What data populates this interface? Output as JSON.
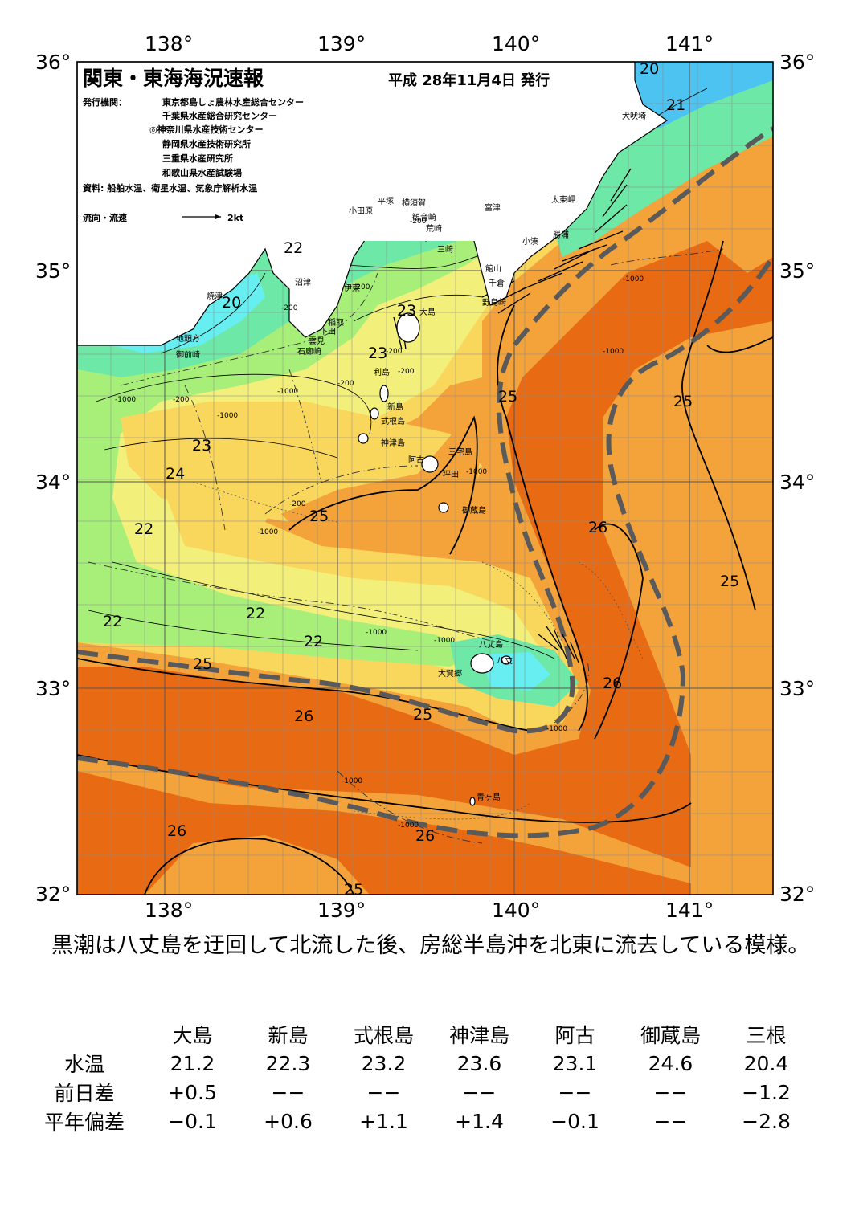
{
  "header": {
    "title": "関東・東海海況速報",
    "issued": "平成 28年11月4日 発行",
    "issuer_label": "発行機関：",
    "issuers": [
      "東京都島しょ農林水産総合センター",
      "千葉県水産総合研究センター",
      "◎神奈川県水産技術センター",
      "静岡県水産技術研究所",
      "三重県水産研究所",
      "和歌山県水産試験場"
    ],
    "source": "資料: 船舶水温、衛星水温、気象庁解析水温",
    "legend_label": "流向・流速",
    "legend_speed": "2kt"
  },
  "axes": {
    "lon_labels": [
      "138°",
      "139°",
      "140°",
      "141°"
    ],
    "lat_labels": [
      "36°",
      "35°",
      "34°",
      "33°",
      "32°"
    ]
  },
  "isotherm_labels": [
    "20",
    "21",
    "22",
    "20",
    "23",
    "23",
    "25",
    "23",
    "24",
    "22",
    "25",
    "26",
    "25",
    "22",
    "22",
    "22",
    "25",
    "26",
    "25",
    "26",
    "26",
    "26",
    "25",
    "25"
  ],
  "depth_labels": [
    "-200",
    "-200",
    "-1000",
    "-200",
    "-1000",
    "-200",
    "-1000",
    "-200",
    "-1000",
    "-200",
    "-1000",
    "-1000",
    "-1000",
    "-1000",
    "-1000",
    "-1000",
    "-200",
    "-1000",
    "-200",
    "-1000"
  ],
  "place_names": [
    "犬吠埼",
    "太東岬",
    "勝浦",
    "小湊",
    "富津",
    "横須賀",
    "観音崎",
    "平塚",
    "小田原",
    "荒崎",
    "三崎",
    "館山",
    "千倉",
    "野島崎",
    "沼津",
    "伊東",
    "焼津",
    "稲取",
    "下田",
    "雲見",
    "石廊崎",
    "地頭方",
    "御前崎",
    "大島",
    "利島",
    "新島",
    "式根島",
    "神津島",
    "三宅島",
    "阿古",
    "坪田",
    "御蔵島",
    "八丈島",
    "八丈",
    "大賀郷",
    "青ヶ島"
  ],
  "summary": "黒潮は八丈島を迂回して北流した後、房総半島沖を北東に流去している模様。",
  "observations": {
    "columns": [
      "大島",
      "新島",
      "式根島",
      "神津島",
      "阿古",
      "御蔵島",
      "三根"
    ],
    "rows": [
      {
        "label": "水温",
        "values": [
          "21.2",
          "22.3",
          "23.2",
          "23.6",
          "23.1",
          "24.6",
          "20.4"
        ]
      },
      {
        "label": "前日差",
        "values": [
          "+0.5",
          "−−",
          "−−",
          "−−",
          "−−",
          "−−",
          "−1.2"
        ]
      },
      {
        "label": "平年偏差",
        "values": [
          "−0.1",
          "+0.6",
          "+1.1",
          "+1.4",
          "−0.1",
          "−−",
          "−2.8"
        ]
      }
    ]
  },
  "colors": {
    "land": "#ffffff",
    "t19": "#4cc3f0",
    "t20": "#66eef0",
    "t21": "#6ee8a6",
    "t22": "#a8ef7a",
    "t23": "#f2f07a",
    "t24": "#f9d65c",
    "t25": "#f3a33a",
    "t26": "#e86a12",
    "kuroshio_axis": "#5a5a5a"
  }
}
